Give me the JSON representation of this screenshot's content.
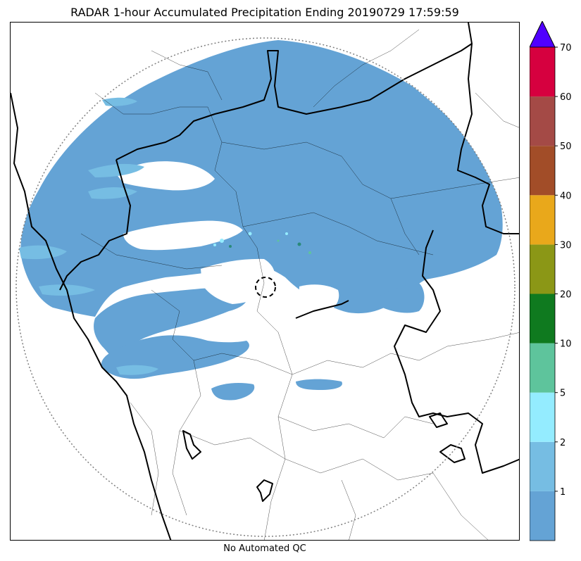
{
  "title": "RADAR 1-hour Accumulated Precipitation Ending 20190729 17:59:59",
  "subtitle": "No Automated QC",
  "colors": {
    "precip_base": "#64a3d5",
    "precip_light": "#76bde3",
    "precip_teal": "#2a8a7a",
    "border_thick": "#000000",
    "border_thin": "#000000",
    "range_ring": "#808080"
  },
  "colorbar": {
    "extend": "max",
    "extend_color": "#5000ff",
    "bins": [
      {
        "label": "",
        "color": "#64a3d5"
      },
      {
        "label": "1",
        "color": "#76bde3"
      },
      {
        "label": "2",
        "color": "#94ecff"
      },
      {
        "label": "5",
        "color": "#5ec49c"
      },
      {
        "label": "10",
        "color": "#0f7a1f"
      },
      {
        "label": "20",
        "color": "#8b9716"
      },
      {
        "label": "30",
        "color": "#e9a81b"
      },
      {
        "label": "40",
        "color": "#a24d28"
      },
      {
        "label": "50",
        "color": "#a44a46"
      },
      {
        "label": "60",
        "color": "#d6003f"
      }
    ],
    "top_label": "70"
  }
}
